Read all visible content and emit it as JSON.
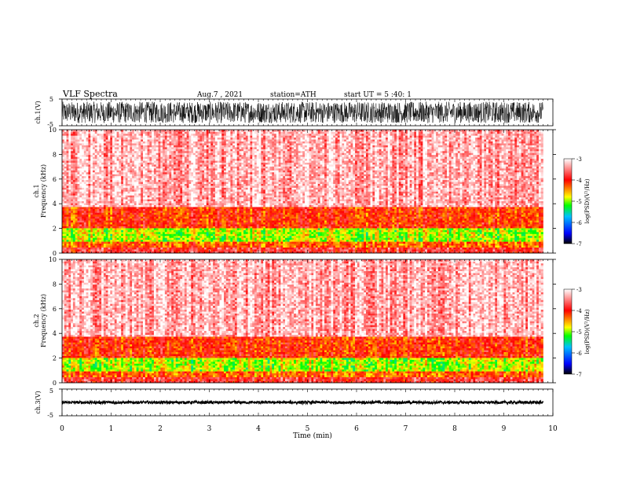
{
  "header": {
    "title": "VLF Spectra",
    "date": "Aug.7 , 2021",
    "station": "station=ATH",
    "start": "start UT = 5 :40: 1"
  },
  "chart_data": [
    {
      "type": "line",
      "name": "ch1-waveform",
      "ylabel": "ch.1(V)",
      "ylim": [
        -5,
        5
      ],
      "yticks": [
        "5",
        "-5"
      ],
      "xlim": [
        0,
        10
      ],
      "data_x_extent": [
        0,
        9.8
      ],
      "amplitude_range": [
        -4,
        4
      ]
    },
    {
      "type": "heatmap",
      "name": "ch1-spectrogram",
      "ylabel": "ch.1\nFrequency (kHz)",
      "ylim": [
        0,
        10
      ],
      "yticks": [
        "0",
        "2",
        "4",
        "6",
        "8",
        "10"
      ],
      "xlim": [
        0,
        10
      ],
      "data_x_extent": [
        0,
        9.8
      ],
      "bands_khz": [
        {
          "range": [
            0,
            0.4
          ],
          "log_psd": -3.8
        },
        {
          "range": [
            0.4,
            1.0
          ],
          "log_psd": -4.3
        },
        {
          "range": [
            1.0,
            2.0
          ],
          "log_psd": -4.9
        },
        {
          "range": [
            2.0,
            3.8
          ],
          "log_psd": -4.1
        },
        {
          "range": [
            3.8,
            10
          ],
          "log_psd": -3.3
        }
      ]
    },
    {
      "type": "heatmap",
      "name": "ch2-spectrogram",
      "ylabel": "ch.2\nFrequency (kHz)",
      "ylim": [
        0,
        10
      ],
      "yticks": [
        "0",
        "2",
        "4",
        "6",
        "8",
        "10"
      ],
      "xlim": [
        0,
        10
      ],
      "data_x_extent": [
        0,
        9.8
      ],
      "bands_khz": [
        {
          "range": [
            0,
            0.4
          ],
          "log_psd": -3.8
        },
        {
          "range": [
            0.4,
            1.0
          ],
          "log_psd": -4.3
        },
        {
          "range": [
            1.0,
            2.0
          ],
          "log_psd": -4.9
        },
        {
          "range": [
            2.0,
            3.8
          ],
          "log_psd": -4.1
        },
        {
          "range": [
            3.8,
            10
          ],
          "log_psd": -3.3
        }
      ]
    },
    {
      "type": "line",
      "name": "ch3-waveform",
      "ylabel": "ch.3(V)",
      "ylim": [
        -5,
        5
      ],
      "yticks": [
        "5",
        "-5"
      ],
      "xlim": [
        0,
        10
      ],
      "data_x_extent": [
        0,
        9.8
      ],
      "amplitude_range": [
        -0.5,
        0.5
      ]
    }
  ],
  "x_axis": {
    "label": "Time (min)",
    "ticks": [
      "0",
      "1",
      "2",
      "3",
      "4",
      "5",
      "6",
      "7",
      "8",
      "9",
      "10"
    ]
  },
  "colorbar": {
    "label": "log(PSD)(V²/Hz)",
    "range": [
      -7,
      -3
    ],
    "ticks": [
      "-3",
      "-4",
      "-5",
      "-6",
      "-7"
    ],
    "stops": [
      "#000000",
      "#0000ff",
      "#00c0ff",
      "#00ff00",
      "#ffff00",
      "#ff0000",
      "#ffffff"
    ]
  }
}
